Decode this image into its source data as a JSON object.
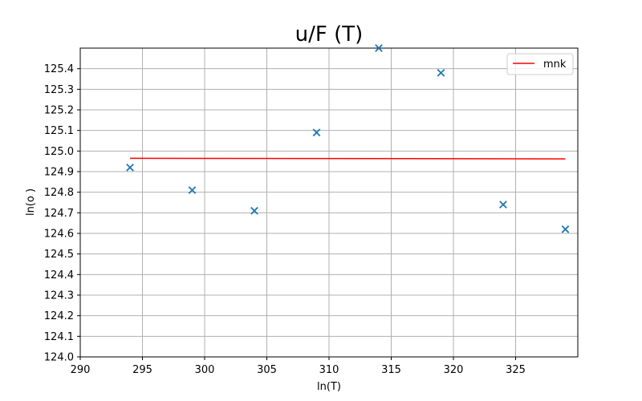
{
  "chart_data": {
    "type": "scatter",
    "title": "u/F (T)",
    "xlabel": "ln(T)",
    "ylabel": "ln(o )",
    "xlim": [
      290,
      330
    ],
    "ylim": [
      124.0,
      125.5
    ],
    "x_ticks": [
      290,
      295,
      300,
      305,
      310,
      315,
      320,
      325
    ],
    "y_ticks": [
      124.0,
      124.1,
      124.2,
      124.3,
      124.4,
      124.5,
      124.6,
      124.7,
      124.8,
      124.9,
      125.0,
      125.1,
      125.2,
      125.3,
      125.4
    ],
    "x_tick_labels": [
      "290",
      "295",
      "300",
      "305",
      "310",
      "315",
      "320",
      "325"
    ],
    "y_tick_labels": [
      "124.0",
      "124.1",
      "124.2",
      "124.3",
      "124.4",
      "124.5",
      "124.6",
      "124.7",
      "124.8",
      "124.9",
      "125.0",
      "125.1",
      "125.2",
      "125.3",
      "125.4"
    ],
    "grid": true,
    "legend_position": "top-right",
    "series": [
      {
        "kind": "scatter",
        "marker": "x",
        "color": "#1f77b4",
        "x": [
          294,
          299,
          304,
          309,
          314,
          319,
          324,
          329
        ],
        "y": [
          124.92,
          124.81,
          124.71,
          125.09,
          125.5,
          125.38,
          124.74,
          124.62
        ]
      },
      {
        "kind": "line",
        "name": "mnk",
        "color": "#ff0000",
        "x": [
          294,
          329
        ],
        "y": [
          124.965,
          124.962
        ]
      }
    ]
  }
}
